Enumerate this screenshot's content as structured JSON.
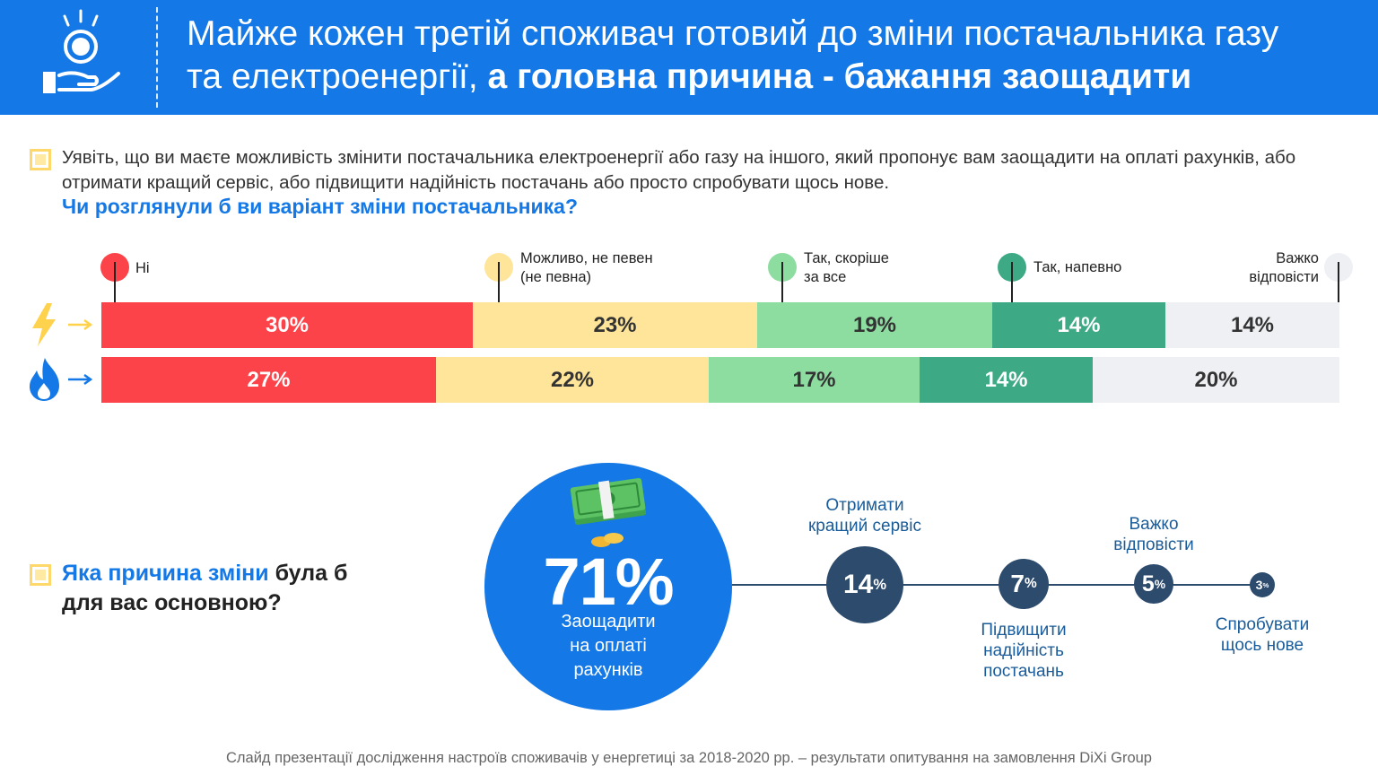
{
  "header": {
    "title_line1": "Майже кожен третій споживач готовий до зміни постачальника газу",
    "title_line2_regular": "та електроенергії,",
    "title_line2_bold": "а головна причина - бажання заощадити",
    "icon": "hand-coin-icon"
  },
  "question1": {
    "intro": "Уявіть, що ви маєте можливість змінити постачальника електроенергії або газу на іншого, який пропонує вам заощадити на оплаті рахунків, або отримати кращий сервіс, або підвищити надійність постачань або просто спробувати щось нове.",
    "title": "Чи розглянули б ви варіант зміни постачальника?"
  },
  "chart_data": [
    {
      "type": "bar",
      "orientation": "horizontal-stacked-100",
      "title": "Чи розглянули б ви варіант зміни постачальника?",
      "categories": [
        "Ні",
        "Можливо, не певен (не певна)",
        "Так, скоріше за все",
        "Так, напевно",
        "Важко відповісти"
      ],
      "series": [
        {
          "name": "Електроенергія",
          "icon": "lightning-icon",
          "values": [
            30,
            23,
            19,
            14,
            14
          ],
          "labels": [
            "30%",
            "23%",
            "19%",
            "14%",
            "14%"
          ]
        },
        {
          "name": "Газ",
          "icon": "flame-icon",
          "values": [
            27,
            22,
            17,
            14,
            20
          ],
          "labels": [
            "27%",
            "22%",
            "17%",
            "14%",
            "20%"
          ]
        }
      ],
      "legend": [
        {
          "line1": "Ні",
          "line2": "",
          "color": "#fc4349"
        },
        {
          "line1": "Можливо, не певен",
          "line2": "(не певна)",
          "color": "#ffe599"
        },
        {
          "line1": "Так, скоріше",
          "line2": "за все",
          "color": "#8ddca0"
        },
        {
          "line1": "Так, напевно",
          "line2": "",
          "color": "#3daa85"
        },
        {
          "line1": "Важко",
          "line2": "відповісти",
          "color": "#eef0f3"
        }
      ],
      "colors": [
        "#fc4349",
        "#ffe599",
        "#8ddca0",
        "#3daa85",
        "#eef0f3"
      ],
      "text_colors": [
        "#ffffff",
        "#333333",
        "#333333",
        "#ffffff",
        "#333333"
      ]
    },
    {
      "type": "bubble",
      "title": "Яка причина зміни була б для вас основною?",
      "categories": [
        "Заощадити на оплаті рахунків",
        "Отримати кращий сервіс",
        "Підвищити надійність постачань",
        "Важко відповісти",
        "Спробувати щось нове"
      ],
      "values": [
        71,
        14,
        7,
        5,
        3
      ],
      "unit": "%"
    }
  ],
  "question2": {
    "title_blue": "Яка причина зміни",
    "title_rest1": " була б",
    "title_rest2": "для вас основною?"
  },
  "reasons": {
    "main": {
      "value": "71%",
      "line1": "Заощадити",
      "line2": "на оплаті",
      "line3": "рахунків",
      "icon": "money-stack-icon"
    },
    "items": [
      {
        "value": "14",
        "unit": "%",
        "line1": "Отримати",
        "line2": "кращий сервіс",
        "line3": ""
      },
      {
        "value": "7",
        "unit": "%",
        "line1": "Підвищити",
        "line2": "надійність",
        "line3": "постачань"
      },
      {
        "value": "5",
        "unit": "%",
        "line1": "Важко",
        "line2": "відповісти",
        "line3": ""
      },
      {
        "value": "3",
        "unit": "%",
        "line1": "Спробувати",
        "line2": "щось нове",
        "line3": ""
      }
    ]
  },
  "footer": "Слайд презентації дослідження настроїв споживачів у енергетиці за 2018-2020 рр. – результати опитування на замовлення DiXi Group",
  "colors": {
    "primary": "#1478e6",
    "dark_node": "#2d4b6d",
    "highlight": "#ffd86b"
  }
}
